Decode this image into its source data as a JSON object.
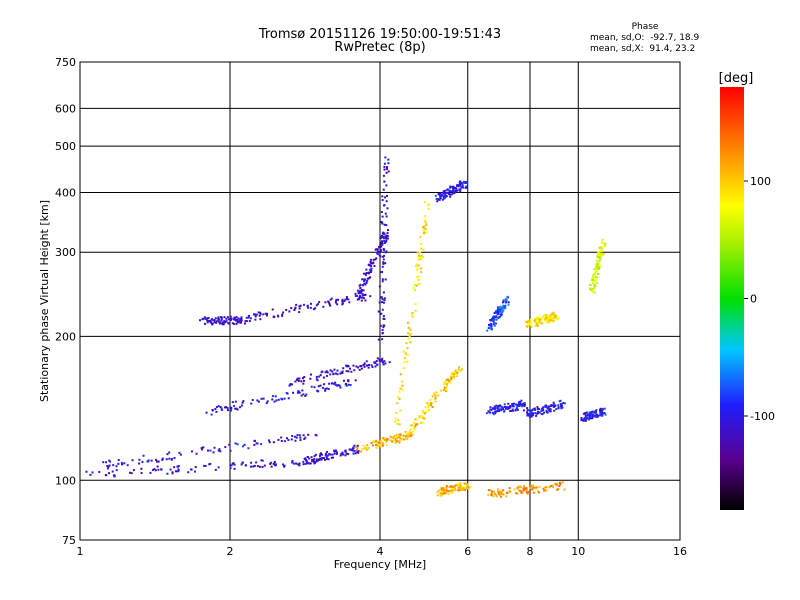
{
  "header": {
    "title": "Tromsø 20151126 19:50:00-19:51:43",
    "subtitle": "RwPretec (8p)"
  },
  "phase_box": {
    "heading": "Phase",
    "line_o": "mean, sd,O:  -92.7, 18.9",
    "line_x": "mean, sd,X:  91.4, 23.2"
  },
  "colorbar": {
    "label": "[deg]",
    "tick_labels": [
      "100",
      "0",
      "-100"
    ],
    "tick_values": [
      100,
      0,
      -100
    ],
    "range": [
      -180,
      180
    ]
  },
  "colors": {
    "grid": "#000000",
    "background": "#ffffff"
  },
  "chart_data": {
    "type": "scatter",
    "xlabel": "Frequency [MHz]",
    "ylabel": "Stationary phase Virtual Height [km]",
    "xscale": "log",
    "yscale": "log",
    "xlim": [
      1,
      16
    ],
    "ylim": [
      75,
      750
    ],
    "xticks": [
      1,
      2,
      4,
      6,
      8,
      10,
      16
    ],
    "xtick_labels": [
      "1",
      "2",
      "4",
      "6",
      "8",
      "10",
      "16"
    ],
    "yticks": [
      75,
      100,
      200,
      300,
      400,
      500,
      600,
      750
    ],
    "ytick_labels": [
      "75",
      "100",
      "200",
      "300",
      "400",
      "500",
      "600",
      "750"
    ],
    "grid": true,
    "color_by": "phase",
    "color_unit": "deg",
    "traces": [
      {
        "x_start": 1.0,
        "x_end": 2.8,
        "y_start": 103,
        "y_end": 110,
        "phase": -110
      },
      {
        "x_start": 2.8,
        "x_end": 3.6,
        "y_start": 110,
        "y_end": 117,
        "phase": -110
      },
      {
        "x_start": 3.6,
        "x_end": 4.6,
        "y_start": 117,
        "y_end": 125,
        "phase": 110
      },
      {
        "x_start": 4.6,
        "x_end": 5.8,
        "y_start": 128,
        "y_end": 175,
        "phase": 100
      },
      {
        "x_start": 1.1,
        "x_end": 3.0,
        "y_start": 108,
        "y_end": 125,
        "phase": -105
      },
      {
        "x_start": 1.8,
        "x_end": 3.6,
        "y_start": 140,
        "y_end": 162,
        "phase": -105
      },
      {
        "x_start": 2.6,
        "x_end": 4.2,
        "y_start": 160,
        "y_end": 180,
        "phase": -110
      },
      {
        "x_start": 1.75,
        "x_end": 2.2,
        "y_start": 216,
        "y_end": 218,
        "phase": -110
      },
      {
        "x_start": 2.2,
        "x_end": 3.8,
        "y_start": 220,
        "y_end": 245,
        "phase": -110
      },
      {
        "x_start": 3.6,
        "x_end": 4.1,
        "y_start": 245,
        "y_end": 330,
        "phase": -110
      },
      {
        "x_start": 4.0,
        "x_end": 4.1,
        "y_start": 200,
        "y_end": 480,
        "phase": -110
      },
      {
        "x_start": 4.3,
        "x_end": 5.0,
        "y_start": 130,
        "y_end": 400,
        "phase": 90
      },
      {
        "x_start": 5.2,
        "x_end": 5.9,
        "y_start": 390,
        "y_end": 420,
        "phase": -100
      },
      {
        "x_start": 6.6,
        "x_end": 7.8,
        "y_start": 140,
        "y_end": 145,
        "phase": -100
      },
      {
        "x_start": 7.8,
        "x_end": 9.3,
        "y_start": 138,
        "y_end": 145,
        "phase": -100
      },
      {
        "x_start": 10.2,
        "x_end": 11.2,
        "y_start": 136,
        "y_end": 140,
        "phase": -100
      },
      {
        "x_start": 6.6,
        "x_end": 9.3,
        "y_start": 94,
        "y_end": 98,
        "phase": 120
      },
      {
        "x_start": 5.2,
        "x_end": 6.0,
        "y_start": 95,
        "y_end": 98,
        "phase": 110
      },
      {
        "x_start": 7.8,
        "x_end": 9.0,
        "y_start": 212,
        "y_end": 222,
        "phase": 90
      },
      {
        "x_start": 6.6,
        "x_end": 7.2,
        "y_start": 210,
        "y_end": 240,
        "phase": -80
      },
      {
        "x_start": 10.6,
        "x_end": 11.2,
        "y_start": 250,
        "y_end": 320,
        "phase": 60
      }
    ]
  }
}
